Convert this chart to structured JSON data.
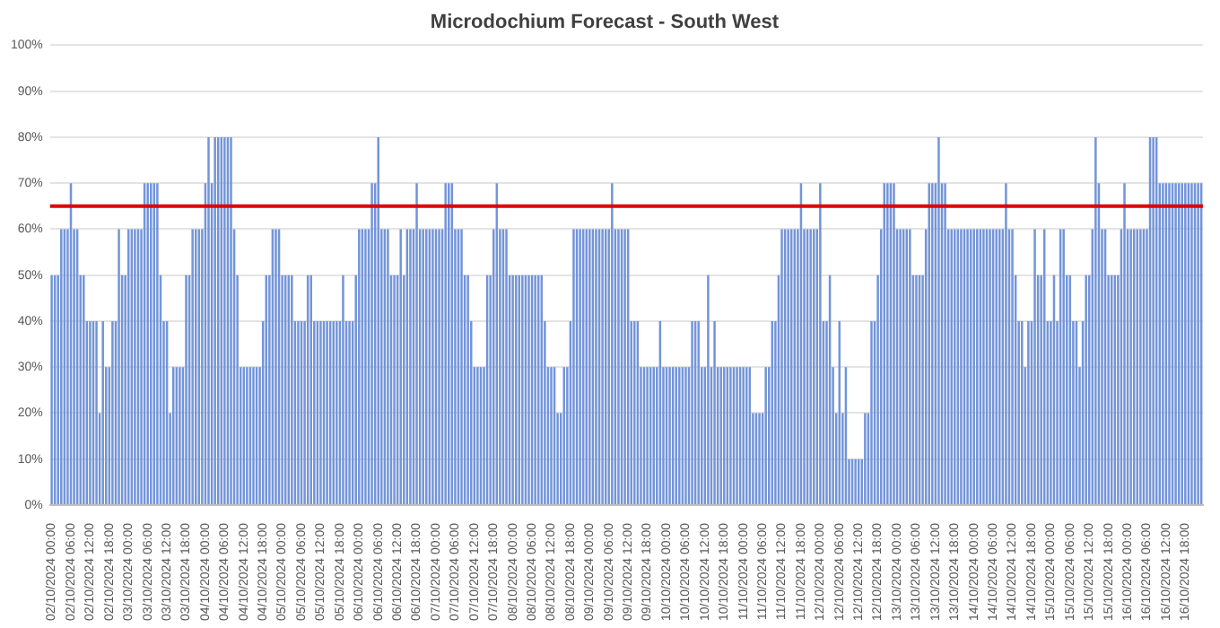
{
  "chart_data": {
    "type": "bar",
    "title": "Microdochium Forecast - South West",
    "categories": [
      "02/10/2024 00:00",
      null,
      null,
      null,
      null,
      null,
      "02/10/2024 06:00",
      null,
      null,
      null,
      null,
      null,
      "02/10/2024 12:00",
      null,
      null,
      null,
      null,
      null,
      "02/10/2024 18:00",
      null,
      null,
      null,
      null,
      null,
      "03/10/2024 00:00",
      null,
      null,
      null,
      null,
      null,
      "03/10/2024 06:00",
      null,
      null,
      null,
      null,
      null,
      "03/10/2024 12:00",
      null,
      null,
      null,
      null,
      null,
      "03/10/2024 18:00",
      null,
      null,
      null,
      null,
      null,
      "04/10/2024 00:00",
      null,
      null,
      null,
      null,
      null,
      "04/10/2024 06:00",
      null,
      null,
      null,
      null,
      null,
      "04/10/2024 12:00",
      null,
      null,
      null,
      null,
      null,
      "04/10/2024 18:00",
      null,
      null,
      null,
      null,
      null,
      "05/10/2024 00:00",
      null,
      null,
      null,
      null,
      null,
      "05/10/2024 06:00",
      null,
      null,
      null,
      null,
      null,
      "05/10/2024 12:00",
      null,
      null,
      null,
      null,
      null,
      "05/10/2024 18:00",
      null,
      null,
      null,
      null,
      null,
      "06/10/2024 00:00",
      null,
      null,
      null,
      null,
      null,
      "06/10/2024 06:00",
      null,
      null,
      null,
      null,
      null,
      "06/10/2024 12:00",
      null,
      null,
      null,
      null,
      null,
      "06/10/2024 18:00",
      null,
      null,
      null,
      null,
      null,
      "07/10/2024 00:00",
      null,
      null,
      null,
      null,
      null,
      "07/10/2024 06:00",
      null,
      null,
      null,
      null,
      null,
      "07/10/2024 12:00",
      null,
      null,
      null,
      null,
      null,
      "07/10/2024 18:00",
      null,
      null,
      null,
      null,
      null,
      "08/10/2024 00:00",
      null,
      null,
      null,
      null,
      null,
      "08/10/2024 06:00",
      null,
      null,
      null,
      null,
      null,
      "08/10/2024 12:00",
      null,
      null,
      null,
      null,
      null,
      "08/10/2024 18:00",
      null,
      null,
      null,
      null,
      null,
      "09/10/2024 00:00",
      null,
      null,
      null,
      null,
      null,
      "09/10/2024 06:00",
      null,
      null,
      null,
      null,
      null,
      "09/10/2024 12:00",
      null,
      null,
      null,
      null,
      null,
      "09/10/2024 18:00",
      null,
      null,
      null,
      null,
      null,
      "10/10/2024 00:00",
      null,
      null,
      null,
      null,
      null,
      "10/10/2024 06:00",
      null,
      null,
      null,
      null,
      null,
      "10/10/2024 12:00",
      null,
      null,
      null,
      null,
      null,
      "10/10/2024 18:00",
      null,
      null,
      null,
      null,
      null,
      "11/10/2024 00:00",
      null,
      null,
      null,
      null,
      null,
      "11/10/2024 06:00",
      null,
      null,
      null,
      null,
      null,
      "11/10/2024 12:00",
      null,
      null,
      null,
      null,
      null,
      "11/10/2024 18:00",
      null,
      null,
      null,
      null,
      null,
      "12/10/2024 00:00",
      null,
      null,
      null,
      null,
      null,
      "12/10/2024 06:00",
      null,
      null,
      null,
      null,
      null,
      "12/10/2024 12:00",
      null,
      null,
      null,
      null,
      null,
      "12/10/2024 18:00",
      null,
      null,
      null,
      null,
      null,
      "13/10/2024 00:00",
      null,
      null,
      null,
      null,
      null,
      "13/10/2024 06:00",
      null,
      null,
      null,
      null,
      null,
      "13/10/2024 12:00",
      null,
      null,
      null,
      null,
      null,
      "13/10/2024 18:00",
      null,
      null,
      null,
      null,
      null,
      "14/10/2024 00:00",
      null,
      null,
      null,
      null,
      null,
      "14/10/2024 06:00",
      null,
      null,
      null,
      null,
      null,
      "14/10/2024 12:00",
      null,
      null,
      null,
      null,
      null,
      "14/10/2024 18:00",
      null,
      null,
      null,
      null,
      null,
      "15/10/2024 00:00",
      null,
      null,
      null,
      null,
      null,
      "15/10/2024 06:00",
      null,
      null,
      null,
      null,
      null,
      "15/10/2024 12:00",
      null,
      null,
      null,
      null,
      null,
      "15/10/2024 18:00",
      null,
      null,
      null,
      null,
      null,
      "16/10/2024 00:00",
      null,
      null,
      null,
      null,
      null,
      "16/10/2024 06:00",
      null,
      null,
      null,
      null,
      null,
      "16/10/2024 12:00",
      null,
      null,
      null,
      null,
      null,
      "16/10/2024 18:00",
      null,
      null,
      null,
      null,
      null
    ],
    "values": [
      50,
      50,
      50,
      60,
      60,
      60,
      70,
      60,
      60,
      50,
      50,
      40,
      40,
      40,
      40,
      20,
      40,
      30,
      30,
      40,
      40,
      60,
      50,
      50,
      60,
      60,
      60,
      60,
      60,
      70,
      70,
      70,
      70,
      70,
      50,
      40,
      40,
      20,
      30,
      30,
      30,
      30,
      50,
      50,
      60,
      60,
      60,
      60,
      70,
      80,
      70,
      80,
      80,
      80,
      80,
      80,
      80,
      60,
      50,
      30,
      30,
      30,
      30,
      30,
      30,
      30,
      40,
      50,
      50,
      60,
      60,
      60,
      50,
      50,
      50,
      50,
      40,
      40,
      40,
      40,
      50,
      50,
      40,
      40,
      40,
      40,
      40,
      40,
      40,
      40,
      40,
      50,
      40,
      40,
      40,
      50,
      60,
      60,
      60,
      60,
      70,
      70,
      80,
      60,
      60,
      60,
      50,
      50,
      50,
      60,
      50,
      60,
      60,
      60,
      70,
      60,
      60,
      60,
      60,
      60,
      60,
      60,
      60,
      70,
      70,
      70,
      60,
      60,
      60,
      50,
      50,
      40,
      30,
      30,
      30,
      30,
      50,
      50,
      60,
      70,
      60,
      60,
      60,
      50,
      50,
      50,
      50,
      50,
      50,
      50,
      50,
      50,
      50,
      50,
      40,
      30,
      30,
      30,
      20,
      20,
      30,
      30,
      40,
      60,
      60,
      60,
      60,
      60,
      60,
      60,
      60,
      60,
      60,
      60,
      60,
      70,
      60,
      60,
      60,
      60,
      60,
      40,
      40,
      40,
      30,
      30,
      30,
      30,
      30,
      30,
      40,
      30,
      30,
      30,
      30,
      30,
      30,
      30,
      30,
      30,
      40,
      40,
      40,
      30,
      30,
      50,
      30,
      40,
      30,
      30,
      30,
      30,
      30,
      30,
      30,
      30,
      30,
      30,
      30,
      20,
      20,
      20,
      20,
      30,
      30,
      40,
      40,
      50,
      60,
      60,
      60,
      60,
      60,
      60,
      70,
      60,
      60,
      60,
      60,
      60,
      70,
      40,
      40,
      50,
      30,
      20,
      40,
      20,
      30,
      10,
      10,
      10,
      10,
      10,
      20,
      20,
      40,
      40,
      50,
      60,
      70,
      70,
      70,
      70,
      60,
      60,
      60,
      60,
      60,
      50,
      50,
      50,
      50,
      60,
      70,
      70,
      70,
      80,
      70,
      70,
      60,
      60,
      60,
      60,
      60,
      60,
      60,
      60,
      60,
      60,
      60,
      60,
      60,
      60,
      60,
      60,
      60,
      60,
      70,
      60,
      60,
      50,
      40,
      40,
      30,
      40,
      40,
      60,
      50,
      50,
      60,
      40,
      40,
      50,
      40,
      60,
      60,
      50,
      50,
      40,
      40,
      30,
      40,
      50,
      50,
      60,
      80,
      70,
      60,
      60,
      50,
      50,
      50,
      50,
      60,
      70,
      60,
      60,
      60,
      60,
      60,
      60,
      60,
      80,
      80,
      80,
      70,
      70,
      70,
      70,
      70,
      70,
      70,
      70,
      70,
      70,
      70,
      70,
      70,
      70
    ],
    "color": "#7394d8",
    "ylim": [
      0,
      100
    ],
    "yticks": [
      {
        "value": 0,
        "label": "0%"
      },
      {
        "value": 10,
        "label": "10%"
      },
      {
        "value": 20,
        "label": "20%"
      },
      {
        "value": 30,
        "label": "30%"
      },
      {
        "value": 40,
        "label": "40%"
      },
      {
        "value": 50,
        "label": "50%"
      },
      {
        "value": 60,
        "label": "60%"
      },
      {
        "value": 70,
        "label": "70%"
      },
      {
        "value": 80,
        "label": "80%"
      },
      {
        "value": 90,
        "label": "90%"
      },
      {
        "value": 100,
        "label": "100%"
      }
    ],
    "grid": "y",
    "ref_lines": [
      {
        "axis": "y",
        "value": 65,
        "color": "#e00000"
      }
    ]
  }
}
